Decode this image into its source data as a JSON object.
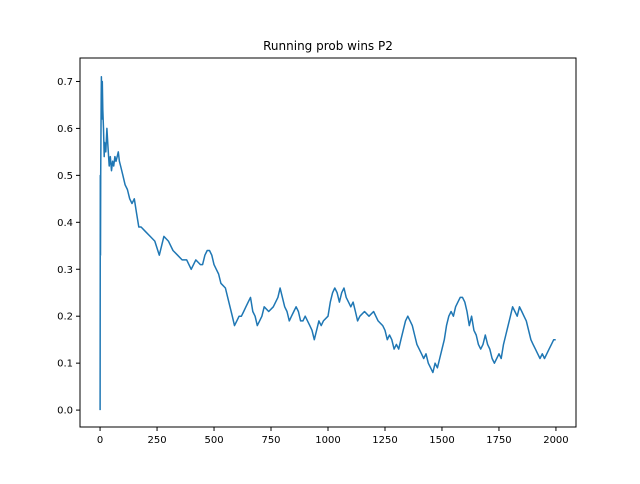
{
  "chart_data": {
    "type": "line",
    "title": "Running prob wins P2",
    "xlabel": "",
    "ylabel": "",
    "xlim": [
      -88,
      2088
    ],
    "ylim": [
      -0.036,
      0.75
    ],
    "xticks": [
      0,
      250,
      500,
      750,
      1000,
      1250,
      1500,
      1750,
      2000
    ],
    "xtick_labels": [
      "0",
      "250",
      "500",
      "750",
      "1000",
      "1250",
      "1500",
      "1750",
      "2000"
    ],
    "yticks": [
      0.0,
      0.1,
      0.2,
      0.3,
      0.4,
      0.5,
      0.6,
      0.7
    ],
    "ytick_labels": [
      "0.0",
      "0.1",
      "0.2",
      "0.3",
      "0.4",
      "0.5",
      "0.6",
      "0.7"
    ],
    "grid": false,
    "legend": "none",
    "series": [
      {
        "color": "#1f77b4",
        "points": [
          [
            0,
            0.0
          ],
          [
            1,
            0.5
          ],
          [
            2,
            0.33
          ],
          [
            3,
            0.5
          ],
          [
            4,
            0.6
          ],
          [
            5,
            0.67
          ],
          [
            6,
            0.71
          ],
          [
            8,
            0.62
          ],
          [
            10,
            0.7
          ],
          [
            12,
            0.64
          ],
          [
            15,
            0.6
          ],
          [
            18,
            0.54
          ],
          [
            20,
            0.57
          ],
          [
            25,
            0.55
          ],
          [
            30,
            0.6
          ],
          [
            35,
            0.56
          ],
          [
            40,
            0.52
          ],
          [
            45,
            0.54
          ],
          [
            50,
            0.51
          ],
          [
            55,
            0.53
          ],
          [
            60,
            0.52
          ],
          [
            65,
            0.54
          ],
          [
            70,
            0.53
          ],
          [
            75,
            0.54
          ],
          [
            80,
            0.55
          ],
          [
            85,
            0.53
          ],
          [
            90,
            0.52
          ],
          [
            100,
            0.5
          ],
          [
            110,
            0.48
          ],
          [
            120,
            0.47
          ],
          [
            130,
            0.45
          ],
          [
            140,
            0.44
          ],
          [
            150,
            0.45
          ],
          [
            160,
            0.42
          ],
          [
            170,
            0.39
          ],
          [
            180,
            0.39
          ],
          [
            200,
            0.38
          ],
          [
            220,
            0.37
          ],
          [
            240,
            0.36
          ],
          [
            260,
            0.33
          ],
          [
            270,
            0.35
          ],
          [
            280,
            0.37
          ],
          [
            300,
            0.36
          ],
          [
            320,
            0.34
          ],
          [
            340,
            0.33
          ],
          [
            360,
            0.32
          ],
          [
            380,
            0.32
          ],
          [
            400,
            0.3
          ],
          [
            420,
            0.32
          ],
          [
            440,
            0.31
          ],
          [
            450,
            0.31
          ],
          [
            460,
            0.33
          ],
          [
            470,
            0.34
          ],
          [
            480,
            0.34
          ],
          [
            490,
            0.33
          ],
          [
            500,
            0.31
          ],
          [
            510,
            0.3
          ],
          [
            520,
            0.29
          ],
          [
            530,
            0.27
          ],
          [
            550,
            0.26
          ],
          [
            560,
            0.24
          ],
          [
            570,
            0.22
          ],
          [
            580,
            0.2
          ],
          [
            590,
            0.18
          ],
          [
            600,
            0.19
          ],
          [
            610,
            0.2
          ],
          [
            620,
            0.2
          ],
          [
            630,
            0.21
          ],
          [
            640,
            0.22
          ],
          [
            650,
            0.23
          ],
          [
            660,
            0.24
          ],
          [
            670,
            0.21
          ],
          [
            680,
            0.2
          ],
          [
            690,
            0.18
          ],
          [
            700,
            0.19
          ],
          [
            710,
            0.2
          ],
          [
            720,
            0.22
          ],
          [
            740,
            0.21
          ],
          [
            760,
            0.22
          ],
          [
            780,
            0.24
          ],
          [
            790,
            0.26
          ],
          [
            800,
            0.24
          ],
          [
            810,
            0.22
          ],
          [
            820,
            0.21
          ],
          [
            830,
            0.19
          ],
          [
            840,
            0.2
          ],
          [
            850,
            0.21
          ],
          [
            860,
            0.22
          ],
          [
            870,
            0.21
          ],
          [
            880,
            0.19
          ],
          [
            890,
            0.19
          ],
          [
            900,
            0.2
          ],
          [
            920,
            0.18
          ],
          [
            930,
            0.17
          ],
          [
            940,
            0.15
          ],
          [
            950,
            0.17
          ],
          [
            960,
            0.19
          ],
          [
            970,
            0.18
          ],
          [
            980,
            0.19
          ],
          [
            1000,
            0.2
          ],
          [
            1010,
            0.23
          ],
          [
            1020,
            0.25
          ],
          [
            1030,
            0.26
          ],
          [
            1040,
            0.25
          ],
          [
            1050,
            0.23
          ],
          [
            1060,
            0.25
          ],
          [
            1070,
            0.26
          ],
          [
            1080,
            0.24
          ],
          [
            1090,
            0.23
          ],
          [
            1100,
            0.22
          ],
          [
            1110,
            0.23
          ],
          [
            1120,
            0.21
          ],
          [
            1130,
            0.19
          ],
          [
            1140,
            0.2
          ],
          [
            1160,
            0.21
          ],
          [
            1180,
            0.2
          ],
          [
            1200,
            0.21
          ],
          [
            1220,
            0.19
          ],
          [
            1240,
            0.18
          ],
          [
            1250,
            0.17
          ],
          [
            1260,
            0.15
          ],
          [
            1270,
            0.16
          ],
          [
            1280,
            0.15
          ],
          [
            1290,
            0.13
          ],
          [
            1300,
            0.14
          ],
          [
            1310,
            0.13
          ],
          [
            1320,
            0.15
          ],
          [
            1330,
            0.17
          ],
          [
            1340,
            0.19
          ],
          [
            1350,
            0.2
          ],
          [
            1360,
            0.19
          ],
          [
            1370,
            0.18
          ],
          [
            1380,
            0.16
          ],
          [
            1390,
            0.14
          ],
          [
            1400,
            0.13
          ],
          [
            1410,
            0.12
          ],
          [
            1420,
            0.11
          ],
          [
            1430,
            0.12
          ],
          [
            1440,
            0.1
          ],
          [
            1450,
            0.09
          ],
          [
            1460,
            0.08
          ],
          [
            1470,
            0.1
          ],
          [
            1480,
            0.09
          ],
          [
            1490,
            0.11
          ],
          [
            1500,
            0.13
          ],
          [
            1510,
            0.15
          ],
          [
            1520,
            0.18
          ],
          [
            1530,
            0.2
          ],
          [
            1540,
            0.21
          ],
          [
            1550,
            0.2
          ],
          [
            1560,
            0.22
          ],
          [
            1570,
            0.23
          ],
          [
            1580,
            0.24
          ],
          [
            1590,
            0.24
          ],
          [
            1600,
            0.23
          ],
          [
            1610,
            0.21
          ],
          [
            1620,
            0.18
          ],
          [
            1630,
            0.2
          ],
          [
            1640,
            0.17
          ],
          [
            1650,
            0.16
          ],
          [
            1660,
            0.14
          ],
          [
            1670,
            0.13
          ],
          [
            1680,
            0.14
          ],
          [
            1690,
            0.16
          ],
          [
            1700,
            0.14
          ],
          [
            1710,
            0.13
          ],
          [
            1720,
            0.11
          ],
          [
            1730,
            0.1
          ],
          [
            1740,
            0.11
          ],
          [
            1750,
            0.12
          ],
          [
            1760,
            0.11
          ],
          [
            1770,
            0.14
          ],
          [
            1780,
            0.16
          ],
          [
            1790,
            0.18
          ],
          [
            1800,
            0.2
          ],
          [
            1810,
            0.22
          ],
          [
            1820,
            0.21
          ],
          [
            1830,
            0.2
          ],
          [
            1840,
            0.22
          ],
          [
            1850,
            0.21
          ],
          [
            1860,
            0.2
          ],
          [
            1870,
            0.19
          ],
          [
            1880,
            0.17
          ],
          [
            1890,
            0.15
          ],
          [
            1900,
            0.14
          ],
          [
            1910,
            0.13
          ],
          [
            1920,
            0.12
          ],
          [
            1930,
            0.11
          ],
          [
            1940,
            0.12
          ],
          [
            1950,
            0.11
          ],
          [
            1960,
            0.12
          ],
          [
            1970,
            0.13
          ],
          [
            1980,
            0.14
          ],
          [
            1990,
            0.15
          ],
          [
            1999,
            0.15
          ]
        ]
      }
    ]
  }
}
